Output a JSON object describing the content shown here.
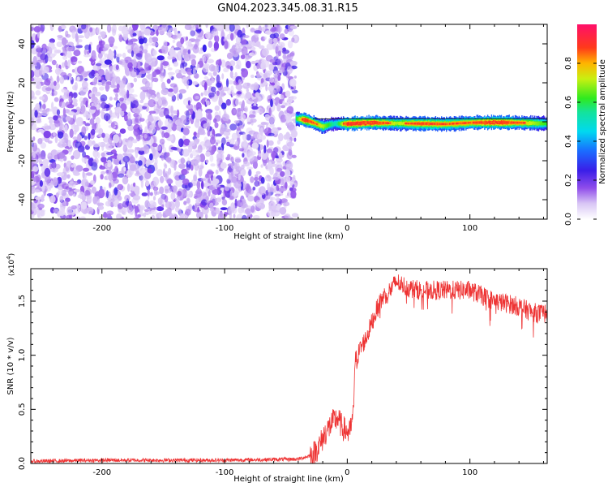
{
  "title": "GN04.2023.345.08.31.R15",
  "chart_data": [
    {
      "type": "heatmap",
      "xlabel": "Height of straight line (km)",
      "ylabel": "Frequency (Hz)",
      "xlim": [
        -258,
        163
      ],
      "ylim": [
        -50,
        50
      ],
      "xticks": [
        -200,
        -100,
        0,
        100
      ],
      "yticks": [
        -40,
        -20,
        0,
        20,
        40
      ],
      "colorbar": {
        "label": "Normalized spectral amplitude",
        "range": [
          0,
          1
        ],
        "ticks": [
          "0.0",
          "0.2",
          "0.4",
          "0.6",
          "0.8"
        ],
        "tick_values": [
          0.0,
          0.2,
          0.4,
          0.6,
          0.8
        ]
      },
      "noise_region_x": [
        -258,
        -42
      ],
      "signal_track": {
        "x": [
          -42,
          -35,
          -28,
          -20,
          -15,
          -10,
          0,
          20,
          40,
          60,
          80,
          100,
          120,
          140,
          163
        ],
        "frequency": [
          1.5,
          1.0,
          -0.5,
          -2.5,
          -1.5,
          -1.0,
          -1.0,
          -0.5,
          -0.8,
          -1.0,
          -1.2,
          -0.5,
          -0.3,
          -0.5,
          -1.0
        ],
        "amplitude": [
          0.6,
          0.9,
          0.8,
          0.7,
          0.6,
          0.5,
          0.9,
          0.9,
          0.7,
          0.85,
          0.8,
          0.8,
          0.9,
          0.8,
          0.6
        ]
      },
      "grid": false
    },
    {
      "type": "line",
      "xlabel": "Height of straight line (km)",
      "ylabel": "SNR (10 * v/v)",
      "yscale_label": "(x10",
      "yscale_exp": "4",
      "yscale_close": ")",
      "xlim": [
        -258,
        163
      ],
      "ylim": [
        0,
        1.8
      ],
      "xticks": [
        -200,
        -100,
        0,
        100
      ],
      "yticks": [
        0.0,
        0.5,
        1.0,
        1.5
      ],
      "ytick_labels": [
        "0.0",
        "0.5",
        "1.0",
        "1.5"
      ],
      "color": "#ee3333",
      "series": [
        {
          "x": [
            -258,
            -200,
            -100,
            -40,
            -28,
            -22,
            -18,
            -12,
            -8,
            -4,
            2,
            5,
            6,
            10,
            15,
            20,
            25,
            30,
            35,
            40,
            50,
            60,
            80,
            100,
            110,
            120,
            130,
            140,
            150,
            160,
            163
          ],
          "values": [
            0.02,
            0.03,
            0.03,
            0.04,
            0.08,
            0.18,
            0.28,
            0.38,
            0.42,
            0.33,
            0.28,
            0.45,
            0.9,
            1.05,
            1.15,
            1.3,
            1.45,
            1.55,
            1.6,
            1.68,
            1.62,
            1.6,
            1.6,
            1.6,
            1.55,
            1.5,
            1.48,
            1.45,
            1.4,
            1.38,
            1.4
          ]
        }
      ],
      "grid": false
    }
  ]
}
